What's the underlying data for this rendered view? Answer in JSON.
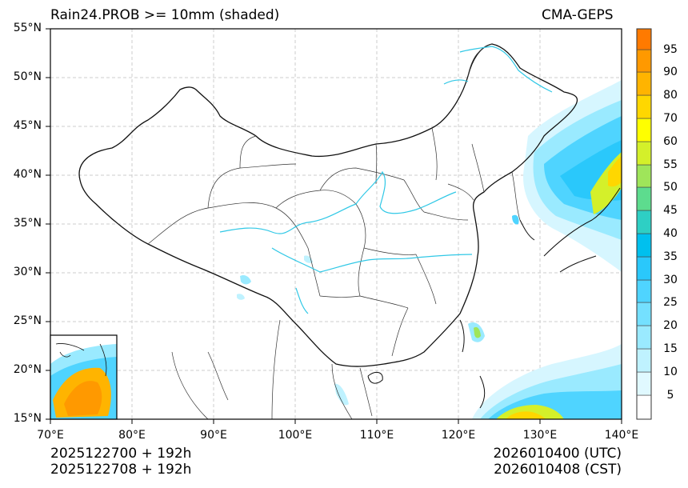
{
  "header": {
    "title_left": "Rain24.PROB >= 10mm (shaded)",
    "title_right": "CMA-GEPS"
  },
  "axes": {
    "lat_labels": [
      "55°N",
      "50°N",
      "45°N",
      "40°N",
      "35°N",
      "30°N",
      "25°N",
      "20°N",
      "15°N"
    ],
    "lon_labels": [
      "70°E",
      "80°E",
      "90°E",
      "100°E",
      "110°E",
      "120°E",
      "130°E",
      "140°E"
    ],
    "lon_range": [
      70,
      140
    ],
    "lat_range": [
      15,
      55
    ]
  },
  "colorbar": {
    "labels": [
      "5",
      "10",
      "15",
      "20",
      "25",
      "30",
      "35",
      "40",
      "45",
      "50",
      "55",
      "60",
      "70",
      "80",
      "90",
      "95"
    ],
    "colors": [
      "#ffffff",
      "#e0f9ff",
      "#bff2ff",
      "#9aeaff",
      "#74e0ff",
      "#4fd4ff",
      "#2ac8fb",
      "#00c0ee",
      "#2ecfc4",
      "#5ddc8e",
      "#9fe55a",
      "#d4f02a",
      "#ffff00",
      "#ffd700",
      "#ffb400",
      "#ff9900",
      "#ff7a00"
    ]
  },
  "footer": {
    "left_line1": "2025122700 + 192h",
    "left_line2": "2025122708 + 192h",
    "right_line1": "2026010400 (UTC)",
    "right_line2": "2026010408 (CST)"
  }
}
